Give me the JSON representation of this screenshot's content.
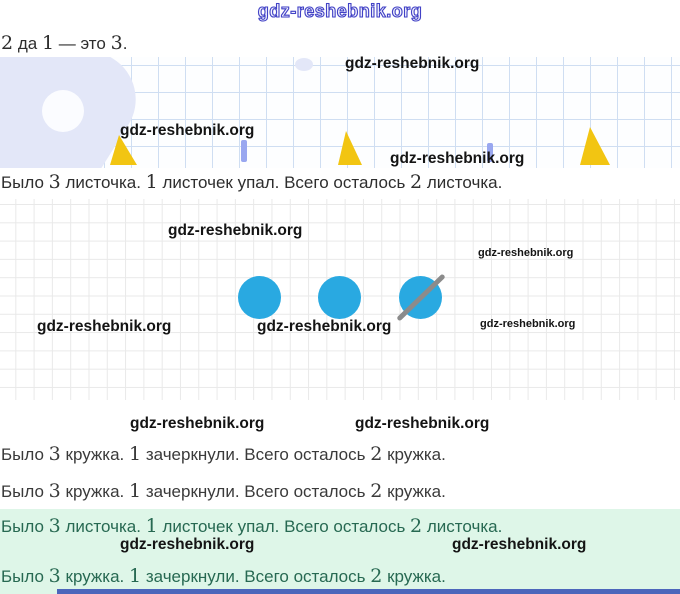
{
  "watermark": {
    "label": "gdz-reshebnik.org"
  },
  "logo": {
    "text": "gdz-reshebnik.org"
  },
  "problem": {
    "intro": "2 да 1 — это 3.",
    "leaves_statement": "Было 3 листочка. 1 листочек упал. Всего осталось 2 листочка.",
    "circles_statement_1": "Было 3 кружка. 1 зачеркнули. Всего осталось 2 кружка.",
    "circles_statement_2": "Было 3 кружка. 1 зачеркнули. Всего осталось 2 кружка."
  },
  "answer_box": {
    "leaves_answer": "Было 3 листочка. 1 листочек упал. Всего осталось 2 листочка.",
    "circles_answer": "Было 3 кружка. 1 зачеркнули. Всего осталось 2 кружка."
  },
  "illustrations": {
    "counter_circles": {
      "total": 3,
      "crossed_out": 1,
      "fill_color": "#29a9e1",
      "cross_color": "#8b8b8b"
    },
    "notebook": {
      "triangle_color": "#f2c512",
      "shape_color": "#e3e7f8",
      "grid_color": "#cfdef2"
    }
  },
  "colors": {
    "answer_box_bg": "#def6e8",
    "answer_text_color": "#276952",
    "bottom_bar_color": "#4c66bb",
    "logo_outline_color": "#4242c6"
  }
}
